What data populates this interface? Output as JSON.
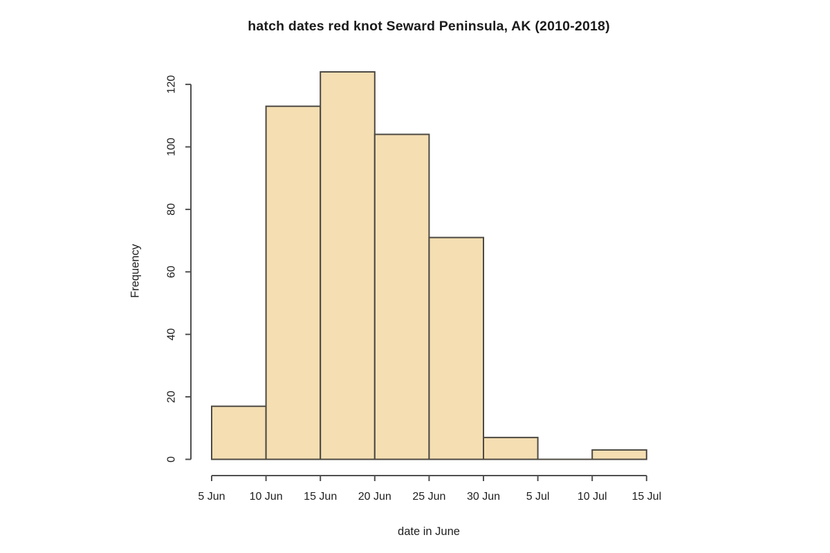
{
  "chart_data": {
    "type": "bar",
    "subtype": "histogram",
    "title": "hatch dates red knot Seward Peninsula, AK (2010-2018)",
    "xlabel": "date in June",
    "ylabel": "Frequency",
    "categories": [
      "5-10 Jun",
      "10-15 Jun",
      "15-20 Jun",
      "20-25 Jun",
      "25-30 Jun",
      "30 Jun-5 Jul",
      "5-10 Jul",
      "10-15 Jul"
    ],
    "values": [
      17,
      113,
      124,
      104,
      71,
      7,
      0,
      3
    ],
    "x_tick_labels": [
      "5 Jun",
      "10 Jun",
      "15 Jun",
      "20 Jun",
      "25 Jun",
      "30 Jun",
      "5 Jul",
      "10 Jul",
      "15 Jul"
    ],
    "y_ticks": [
      0,
      20,
      40,
      60,
      80,
      100,
      120
    ],
    "ylim": [
      0,
      124
    ],
    "grid": false,
    "legend_position": "none",
    "colors": {
      "bar_fill": "#f4deb2",
      "bar_border": "#4c4942",
      "axis": "#4f4f4f",
      "text": "#1e1e1e",
      "background": "#ffffff"
    }
  }
}
